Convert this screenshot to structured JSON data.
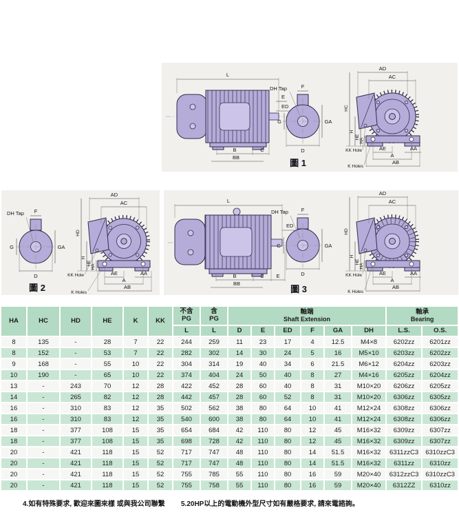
{
  "colors": {
    "panel_bg": "#f1f0ec",
    "motor_fill": "#b6acd9",
    "motor_light": "#cdc5e9",
    "outline_ink": "#2d2d4a",
    "table_header_green": "#b3dac2",
    "table_row_green": "#c9e6d4",
    "table_row_white": "#f6f6f4"
  },
  "figures": {
    "fig1": {
      "caption": "圖 1",
      "dims": {
        "L": "L",
        "E": "E",
        "ED": "ED",
        "B": "B",
        "BB": "BB",
        "C": "C",
        "dh_tap": "DH Tap",
        "F": "F",
        "G": "G",
        "GA": "GA",
        "D": "D",
        "AD": "AD",
        "AC": "AC",
        "HV": "HC",
        "H": "H",
        "HE": "HE",
        "HA": "HA",
        "kk_hole": "KK Hole",
        "k_holes": "K Holes",
        "AE": "AE",
        "A": "A",
        "AA": "AA",
        "AB": "AB"
      }
    },
    "fig2": {
      "caption": "圖 2",
      "dims": {
        "dh_tap": "DH Tap",
        "F": "F",
        "G": "G",
        "GA": "GA",
        "D": "D",
        "AD": "AD",
        "AC": "AC",
        "HV": "HD",
        "H": "H",
        "HE": "HE",
        "HA": "HA",
        "kk_hole": "KK Hole",
        "k_holes": "K Holes",
        "AE": "AE",
        "A": "A",
        "AA": "AA",
        "AB": "AB"
      }
    },
    "fig3": {
      "caption": "圖 3",
      "dims": {
        "L": "L",
        "E": "E",
        "ED": "ED",
        "B": "B",
        "BB": "BB",
        "C": "C",
        "dh_tap": "DH Tap",
        "F": "F",
        "G": "G",
        "GA": "GA",
        "D": "D",
        "AD": "AD",
        "AC": "AC",
        "HV": "HD",
        "H": "H",
        "HE": "HE",
        "HA": "HA",
        "kk_hole": "KK Hole",
        "k_holes": "K Holes",
        "AE": "AE",
        "A": "A",
        "AA": "AA",
        "AB": "AB"
      }
    }
  },
  "table": {
    "headers": {
      "ha": "HA",
      "hc": "HC",
      "hd": "HD",
      "he": "HE",
      "k": "K",
      "kk": "KK",
      "no_pg": "不含\nPG",
      "pg": "含\nPG",
      "shaft_cn": "軸端",
      "shaft_en": "Shaft Extension",
      "bearing_cn": "軸承",
      "bearing_en": "Bearing",
      "sub": [
        "L",
        "L",
        "D",
        "E",
        "ED",
        "F",
        "GA",
        "DH",
        "L.S.",
        "O.S."
      ]
    },
    "rows": [
      [
        "8",
        "135",
        "-",
        "28",
        "7",
        "22",
        "244",
        "259",
        "11",
        "23",
        "17",
        "4",
        "12.5",
        "M4×8",
        "6202zz",
        "6201zz"
      ],
      [
        "8",
        "152",
        "-",
        "53",
        "7",
        "22",
        "282",
        "302",
        "14",
        "30",
        "24",
        "5",
        "16",
        "M5×10",
        "6203zz",
        "6202zz"
      ],
      [
        "9",
        "168",
        "-",
        "55",
        "10",
        "22",
        "304",
        "314",
        "19",
        "40",
        "34",
        "6",
        "21.5",
        "M6×12",
        "6204zz",
        "6203zz"
      ],
      [
        "10",
        "190",
        "-",
        "65",
        "10",
        "22",
        "374",
        "404",
        "24",
        "50",
        "40",
        "8",
        "27",
        "M4×16",
        "6205zz",
        "6204zz"
      ],
      [
        "13",
        "-",
        "243",
        "70",
        "12",
        "28",
        "422",
        "452",
        "28",
        "60",
        "40",
        "8",
        "31",
        "M10×20",
        "6206zz",
        "6205zz"
      ],
      [
        "14",
        "-",
        "265",
        "82",
        "12",
        "28",
        "442",
        "457",
        "28",
        "60",
        "52",
        "8",
        "31",
        "M10×20",
        "6306zz",
        "6305zz"
      ],
      [
        "16",
        "-",
        "310",
        "83",
        "12",
        "35",
        "502",
        "562",
        "38",
        "80",
        "64",
        "10",
        "41",
        "M12×24",
        "6308zz",
        "6306zz"
      ],
      [
        "16",
        "-",
        "310",
        "83",
        "12",
        "35",
        "540",
        "600",
        "38",
        "80",
        "64",
        "10",
        "41",
        "M12×24",
        "6308zz",
        "6306zz"
      ],
      [
        "18",
        "-",
        "377",
        "108",
        "15",
        "35",
        "654",
        "684",
        "42",
        "110",
        "80",
        "12",
        "45",
        "M16×32",
        "6309zz",
        "6307zz"
      ],
      [
        "18",
        "-",
        "377",
        "108",
        "15",
        "35",
        "698",
        "728",
        "42",
        "110",
        "80",
        "12",
        "45",
        "M16×32",
        "6309zz",
        "6307zz"
      ],
      [
        "20",
        "-",
        "421",
        "118",
        "15",
        "52",
        "717",
        "747",
        "48",
        "110",
        "80",
        "14",
        "51.5",
        "M16×32",
        "6311zzC3",
        "6310zzC3"
      ],
      [
        "20",
        "-",
        "421",
        "118",
        "15",
        "52",
        "717",
        "747",
        "48",
        "110",
        "80",
        "14",
        "51.5",
        "M16×32",
        "6311zz",
        "6310zz"
      ],
      [
        "20",
        "-",
        "421",
        "118",
        "15",
        "52",
        "755",
        "785",
        "55",
        "110",
        "80",
        "16",
        "59",
        "M20×40",
        "6312zzC3",
        "6310zzC3"
      ],
      [
        "20",
        "-",
        "421",
        "118",
        "15",
        "52",
        "755",
        "758",
        "55",
        "110",
        "80",
        "16",
        "59",
        "M20×40",
        "6312ZZ",
        "6310zz"
      ]
    ]
  },
  "notes": {
    "note4": "4.如有特殊要求, 歡迎來圖來樣 或與我公司聯繫",
    "note5": "5.20HP以上的電動機外型尺寸如有嚴格要求, 請來電諮詢。"
  }
}
